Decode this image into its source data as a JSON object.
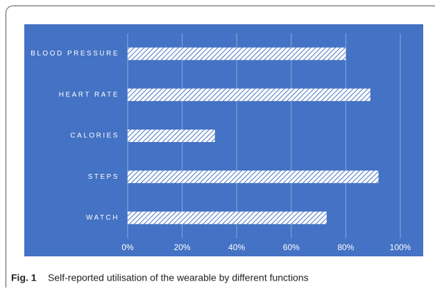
{
  "chart_data": {
    "type": "bar",
    "orientation": "horizontal",
    "figure_label": "Fig. 1",
    "title": "Self-reported utilisation of the wearable by different functions",
    "categories": [
      "BLOOD PRESSURE",
      "HEART RATE",
      "CALORIES",
      "STEPS",
      "WATCH"
    ],
    "values": [
      80,
      89,
      32,
      92,
      73
    ],
    "color": "#4472c4",
    "xlim": [
      0,
      100
    ],
    "xticks": [
      {
        "value": 0,
        "label": "0%"
      },
      {
        "value": 20,
        "label": "20%"
      },
      {
        "value": 40,
        "label": "40%"
      },
      {
        "value": 60,
        "label": "60%"
      },
      {
        "value": 80,
        "label": "80%"
      },
      {
        "value": 100,
        "label": "100%"
      }
    ],
    "grid": true
  }
}
